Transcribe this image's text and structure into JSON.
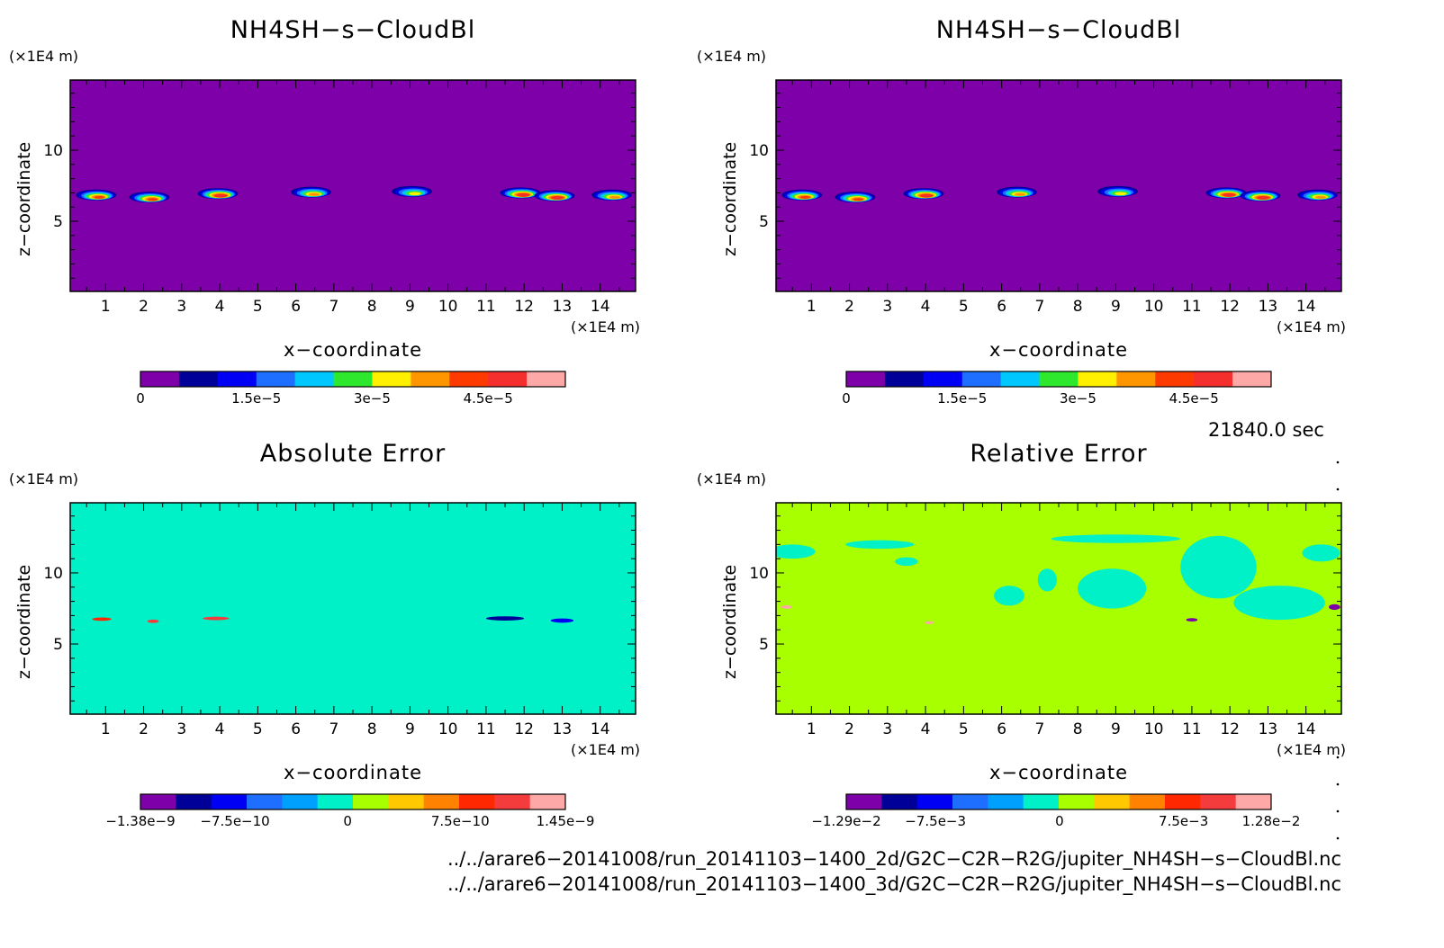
{
  "chart_data": [
    {
      "type": "heatmap",
      "title": "NH4SH−s−CloudBl",
      "xlabel": "x−coordinate",
      "ylabel": "z−coordinate",
      "x_unit": "(×1E4 m)",
      "y_unit": "(×1E4 m)",
      "x_ticks": [
        1,
        2,
        3,
        4,
        5,
        6,
        7,
        8,
        9,
        10,
        11,
        12,
        13,
        14
      ],
      "y_ticks": [
        5,
        10
      ],
      "xlim": [
        0.07,
        14.93
      ],
      "ylim": [
        0.07,
        14.93
      ],
      "colorbar": {
        "colors": [
          "#7d00a8",
          "#000098",
          "#0000f5",
          "#1e6eff",
          "#00c8ff",
          "#2ee82e",
          "#fff000",
          "#ff9600",
          "#ff3a00",
          "#f52e2e",
          "#ffa8a8"
        ],
        "tick_labels": [
          "0",
          "1.5e−5",
          "3e−5",
          "4.5e−5"
        ],
        "tick_values": [
          0,
          1.5e-05,
          3e-05,
          4.5e-05
        ],
        "range": [
          0,
          5.5e-05
        ]
      },
      "background_level": 0,
      "features": [
        {
          "x": 0.75,
          "z": 6.85,
          "peak": 4e-05
        },
        {
          "x": 2.15,
          "z": 6.7,
          "peak": 4.3e-05
        },
        {
          "x": 3.95,
          "z": 6.95,
          "peak": 4.8e-05
        },
        {
          "x": 6.4,
          "z": 7.05,
          "peak": 3.6e-05
        },
        {
          "x": 9.05,
          "z": 7.1,
          "peak": 3.3e-05
        },
        {
          "x": 11.9,
          "z": 7.0,
          "peak": 4.8e-05
        },
        {
          "x": 12.8,
          "z": 6.8,
          "peak": 4.5e-05
        },
        {
          "x": 14.3,
          "z": 6.85,
          "peak": 3.8e-05
        }
      ]
    },
    {
      "type": "heatmap",
      "title": "NH4SH−s−CloudBl",
      "xlabel": "x−coordinate",
      "ylabel": "z−coordinate",
      "x_unit": "(×1E4 m)",
      "y_unit": "(×1E4 m)",
      "x_ticks": [
        1,
        2,
        3,
        4,
        5,
        6,
        7,
        8,
        9,
        10,
        11,
        12,
        13,
        14
      ],
      "y_ticks": [
        5,
        10
      ],
      "xlim": [
        0.07,
        14.93
      ],
      "ylim": [
        0.07,
        14.93
      ],
      "colorbar": {
        "colors": [
          "#7d00a8",
          "#000098",
          "#0000f5",
          "#1e6eff",
          "#00c8ff",
          "#2ee82e",
          "#fff000",
          "#ff9600",
          "#ff3a00",
          "#f52e2e",
          "#ffa8a8"
        ],
        "tick_labels": [
          "0",
          "1.5e−5",
          "3e−5",
          "4.5e−5"
        ],
        "tick_values": [
          0,
          1.5e-05,
          3e-05,
          4.5e-05
        ],
        "range": [
          0,
          5.5e-05
        ]
      },
      "background_level": 0,
      "features": [
        {
          "x": 0.75,
          "z": 6.85,
          "peak": 4e-05
        },
        {
          "x": 2.15,
          "z": 6.7,
          "peak": 4.3e-05
        },
        {
          "x": 3.95,
          "z": 6.95,
          "peak": 4.8e-05
        },
        {
          "x": 6.4,
          "z": 7.05,
          "peak": 3.6e-05
        },
        {
          "x": 9.05,
          "z": 7.1,
          "peak": 3.3e-05
        },
        {
          "x": 11.9,
          "z": 7.0,
          "peak": 4.8e-05
        },
        {
          "x": 12.8,
          "z": 6.8,
          "peak": 4.5e-05
        },
        {
          "x": 14.3,
          "z": 6.85,
          "peak": 3.8e-05
        }
      ]
    },
    {
      "type": "heatmap",
      "title": "Absolute Error",
      "xlabel": "x−coordinate",
      "ylabel": "z−coordinate",
      "x_unit": "(×1E4 m)",
      "y_unit": "(×1E4 m)",
      "x_ticks": [
        1,
        2,
        3,
        4,
        5,
        6,
        7,
        8,
        9,
        10,
        11,
        12,
        13,
        14
      ],
      "y_ticks": [
        5,
        10
      ],
      "xlim": [
        0.07,
        14.93
      ],
      "ylim": [
        0.07,
        14.93
      ],
      "colorbar": {
        "colors": [
          "#7d00a8",
          "#000098",
          "#0000f5",
          "#1e6eff",
          "#00a0ff",
          "#00f0c8",
          "#a8ff00",
          "#ffc800",
          "#ff8200",
          "#ff2800",
          "#f53c3c",
          "#ffa8a8"
        ],
        "tick_labels": [
          "−1.38e−9",
          "−7.5e−10",
          "0",
          "7.5e−10",
          "1.45e−9"
        ],
        "tick_values": [
          -1.38e-09,
          -7.5e-10,
          0,
          7.5e-10,
          1.45e-09
        ],
        "range": [
          -1.38e-09,
          1.45e-09
        ]
      },
      "background_level": 0,
      "patches": [
        {
          "x": 0.5,
          "z": 11.5,
          "rx": 0.6,
          "rz": 0.5,
          "level": -2e-10
        },
        {
          "x": 2.8,
          "z": 12.0,
          "rx": 0.9,
          "rz": 0.3,
          "level": -2e-10
        },
        {
          "x": 3.5,
          "z": 10.8,
          "rx": 0.3,
          "rz": 0.3,
          "level": -2e-10
        },
        {
          "x": 6.2,
          "z": 8.4,
          "rx": 0.4,
          "rz": 0.7,
          "level": -2e-10
        },
        {
          "x": 7.2,
          "z": 9.5,
          "rx": 0.25,
          "rz": 0.8,
          "level": -2e-10
        },
        {
          "x": 9.0,
          "z": 12.4,
          "rx": 1.7,
          "rz": 0.3,
          "level": -2e-10
        },
        {
          "x": 8.9,
          "z": 8.9,
          "rx": 0.9,
          "rz": 1.4,
          "level": -2e-10
        },
        {
          "x": 11.7,
          "z": 10.4,
          "rx": 1.0,
          "rz": 2.2,
          "level": -2e-10
        },
        {
          "x": 13.3,
          "z": 7.9,
          "rx": 1.2,
          "rz": 1.2,
          "level": -2e-10
        },
        {
          "x": 14.4,
          "z": 11.4,
          "rx": 0.5,
          "rz": 0.6,
          "level": -2e-10
        },
        {
          "x": 11.5,
          "z": 6.8,
          "rx": 0.5,
          "rz": 0.15,
          "level": -1e-09
        },
        {
          "x": 13.0,
          "z": 6.65,
          "rx": 0.3,
          "rz": 0.15,
          "level": -8e-10
        },
        {
          "x": 0.9,
          "z": 6.75,
          "rx": 0.25,
          "rz": 0.12,
          "level": 8e-10
        },
        {
          "x": 2.25,
          "z": 6.6,
          "rx": 0.15,
          "rz": 0.12,
          "level": 1.1e-09
        },
        {
          "x": 3.9,
          "z": 6.8,
          "rx": 0.35,
          "rz": 0.12,
          "level": 1e-09
        }
      ]
    },
    {
      "type": "heatmap",
      "title": "Relative Error",
      "xlabel": "x−coordinate",
      "ylabel": "z−coordinate",
      "x_unit": "(×1E4 m)",
      "y_unit": "(×1E4 m)",
      "x_ticks": [
        1,
        2,
        3,
        4,
        5,
        6,
        7,
        8,
        9,
        10,
        11,
        12,
        13,
        14
      ],
      "y_ticks": [
        5,
        10
      ],
      "xlim": [
        0.07,
        14.93
      ],
      "ylim": [
        0.07,
        14.93
      ],
      "colorbar": {
        "colors": [
          "#7d00a8",
          "#000098",
          "#0000f5",
          "#1e6eff",
          "#00a0ff",
          "#00f0c8",
          "#a8ff00",
          "#ffc800",
          "#ff8200",
          "#ff2800",
          "#f53c3c",
          "#ffa8a8"
        ],
        "tick_labels": [
          "−1.29e−2",
          "−7.5e−3",
          "0",
          "7.5e−3",
          "1.28e−2"
        ],
        "tick_values": [
          -0.0129,
          -0.0075,
          0,
          0.0075,
          0.0128
        ],
        "range": [
          -0.0129,
          0.0128
        ]
      },
      "background_level": 0,
      "patches": [
        {
          "x": 0.5,
          "z": 11.5,
          "rx": 0.6,
          "rz": 0.5,
          "level": -0.002
        },
        {
          "x": 2.8,
          "z": 12.0,
          "rx": 0.9,
          "rz": 0.3,
          "level": -0.002
        },
        {
          "x": 3.5,
          "z": 10.8,
          "rx": 0.3,
          "rz": 0.3,
          "level": -0.002
        },
        {
          "x": 6.2,
          "z": 8.4,
          "rx": 0.4,
          "rz": 0.7,
          "level": -0.002
        },
        {
          "x": 7.2,
          "z": 9.5,
          "rx": 0.25,
          "rz": 0.8,
          "level": -0.002
        },
        {
          "x": 9.0,
          "z": 12.4,
          "rx": 1.7,
          "rz": 0.3,
          "level": -0.002
        },
        {
          "x": 8.9,
          "z": 8.9,
          "rx": 0.9,
          "rz": 1.4,
          "level": -0.002
        },
        {
          "x": 11.7,
          "z": 10.4,
          "rx": 1.0,
          "rz": 2.2,
          "level": -0.002
        },
        {
          "x": 13.3,
          "z": 7.9,
          "rx": 1.2,
          "rz": 1.2,
          "level": -0.002
        },
        {
          "x": 14.4,
          "z": 11.4,
          "rx": 0.5,
          "rz": 0.6,
          "level": -0.002
        },
        {
          "x": 14.75,
          "z": 7.6,
          "rx": 0.15,
          "rz": 0.2,
          "level": -0.011
        },
        {
          "x": 11.0,
          "z": 6.7,
          "rx": 0.15,
          "rz": 0.12,
          "level": -0.011
        },
        {
          "x": 0.35,
          "z": 7.6,
          "rx": 0.15,
          "rz": 0.12,
          "level": 0.011
        },
        {
          "x": 4.1,
          "z": 6.5,
          "rx": 0.12,
          "rz": 0.1,
          "level": 0.011
        }
      ]
    }
  ],
  "time_label": "21840.0 sec",
  "file_paths": [
    "../../arare6−20141008/run_20141103−1400_2d/G2C−C2R−R2G/jupiter_NH4SH−s−CloudBl.nc",
    "../../arare6−20141008/run_20141103−1400_3d/G2C−C2R−R2G/jupiter_NH4SH−s−CloudBl.nc"
  ]
}
